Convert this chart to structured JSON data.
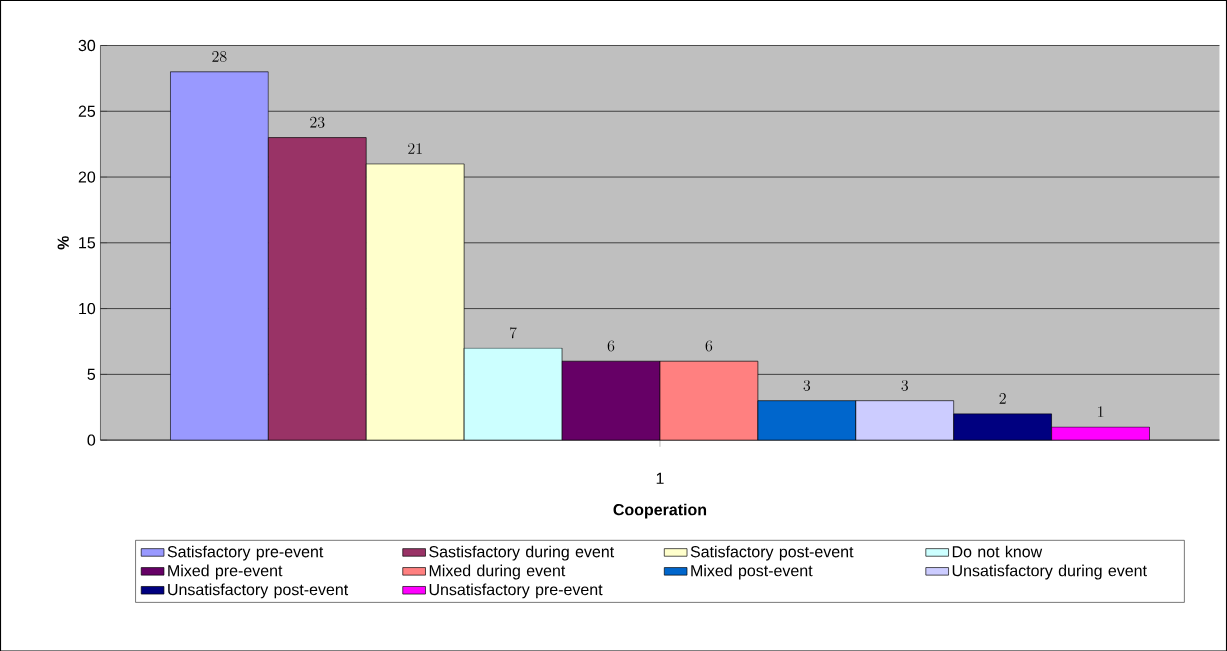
{
  "chart_data": {
    "type": "bar",
    "categories": [
      "1"
    ],
    "xlabel": "Cooperation",
    "ylabel": "%",
    "ylim": [
      0,
      30
    ],
    "yticks": [
      0,
      5,
      10,
      15,
      20,
      25,
      30
    ],
    "grid": "y",
    "legend": "bottom",
    "data_labels": true,
    "series": [
      {
        "name": "Satisfactory pre-event",
        "color": "#9999ff",
        "values": [
          28
        ]
      },
      {
        "name": "Sastisfactory during event",
        "color": "#993366",
        "values": [
          23
        ]
      },
      {
        "name": "Satisfactory post-event",
        "color": "#ffffcc",
        "values": [
          21
        ]
      },
      {
        "name": "Do not know",
        "color": "#ccffff",
        "values": [
          7
        ]
      },
      {
        "name": "Mixed pre-event",
        "color": "#660066",
        "values": [
          6
        ]
      },
      {
        "name": "Mixed during event",
        "color": "#ff8080",
        "values": [
          6
        ]
      },
      {
        "name": "Mixed post-event",
        "color": "#0066cc",
        "values": [
          3
        ]
      },
      {
        "name": "Unsatisfactory during event",
        "color": "#ccccff",
        "values": [
          3
        ]
      },
      {
        "name": "Unsatisfactory post-event",
        "color": "#000080",
        "values": [
          2
        ]
      },
      {
        "name": "Unsatisfactory pre-event",
        "color": "#ff00ff",
        "values": [
          1
        ]
      }
    ]
  }
}
